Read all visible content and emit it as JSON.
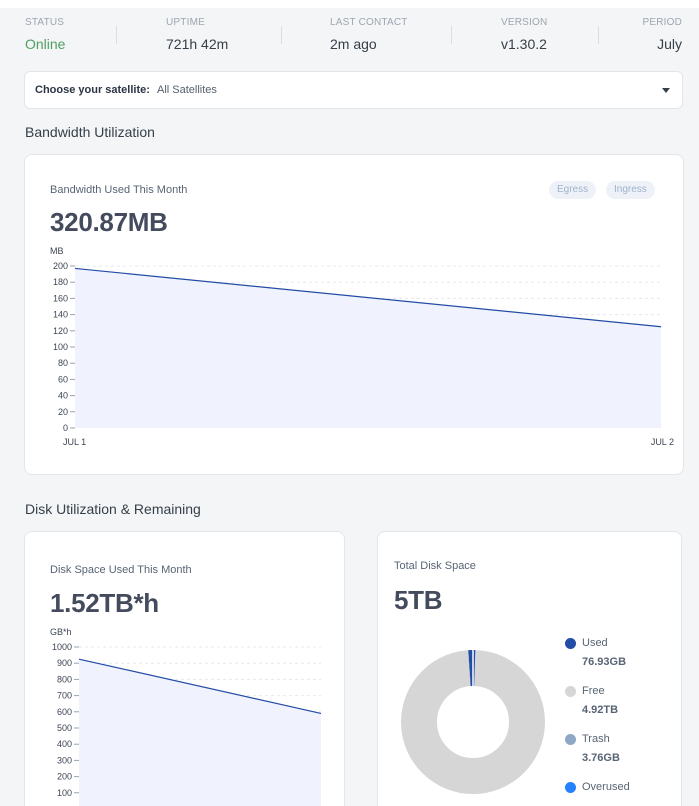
{
  "status": {
    "items": [
      {
        "label": "STATUS",
        "value": "Online"
      },
      {
        "label": "UPTIME",
        "value": "721h 42m"
      },
      {
        "label": "LAST CONTACT",
        "value": "2m ago"
      },
      {
        "label": "VERSION",
        "value": "v1.30.2"
      },
      {
        "label": "PERIOD",
        "value": "July"
      }
    ]
  },
  "satellite": {
    "label": "Choose your satellite:",
    "value": "All Satellites"
  },
  "bandwidth": {
    "section_title": "Bandwidth Utilization",
    "card_label": "Bandwidth Used This Month",
    "card_value": "320.87MB",
    "tabs": [
      "Egress",
      "Ingress"
    ]
  },
  "disk": {
    "section_title": "Disk Utilization & Remaining",
    "card_label": "Disk Space Used This Month",
    "card_value": "1.52TB*h"
  },
  "total_disk": {
    "card_label": "Total Disk Space",
    "card_value": "5TB",
    "legend": [
      {
        "name": "Used",
        "value": "76.93GB",
        "color": "#224ca5"
      },
      {
        "name": "Free",
        "value": "4.92TB",
        "color": "#d6d6d6"
      },
      {
        "name": "Trash",
        "value": "3.76GB",
        "color": "#8fa7c6"
      },
      {
        "name": "Overused",
        "value": "",
        "color": "#2582ff"
      }
    ]
  },
  "chart_data": [
    {
      "type": "area",
      "ylabel": "MB",
      "x": [
        "JUL 1",
        "JUL 2"
      ],
      "values": [
        197,
        125
      ],
      "yticks": [
        0,
        20,
        40,
        60,
        80,
        100,
        120,
        140,
        160,
        180,
        200
      ],
      "ylim": [
        0,
        200
      ],
      "line_color": "#224ca5",
      "fill_color": "#f0f3fd"
    },
    {
      "type": "area",
      "ylabel": "GB*h",
      "values": [
        925,
        590
      ],
      "yticks": [
        100,
        200,
        300,
        400,
        500,
        600,
        700,
        800,
        900,
        1000
      ],
      "ylim": [
        0,
        1000
      ],
      "line_color": "#224ca5",
      "fill_color": "#f0f3fd"
    },
    {
      "type": "pie",
      "categories": [
        "Used",
        "Free",
        "Trash",
        "Overused"
      ],
      "values": [
        76.93,
        4920,
        3.76,
        0
      ],
      "colors": [
        "#224ca5",
        "#d6d6d6",
        "#8fa7c6",
        "#2582ff"
      ]
    }
  ]
}
